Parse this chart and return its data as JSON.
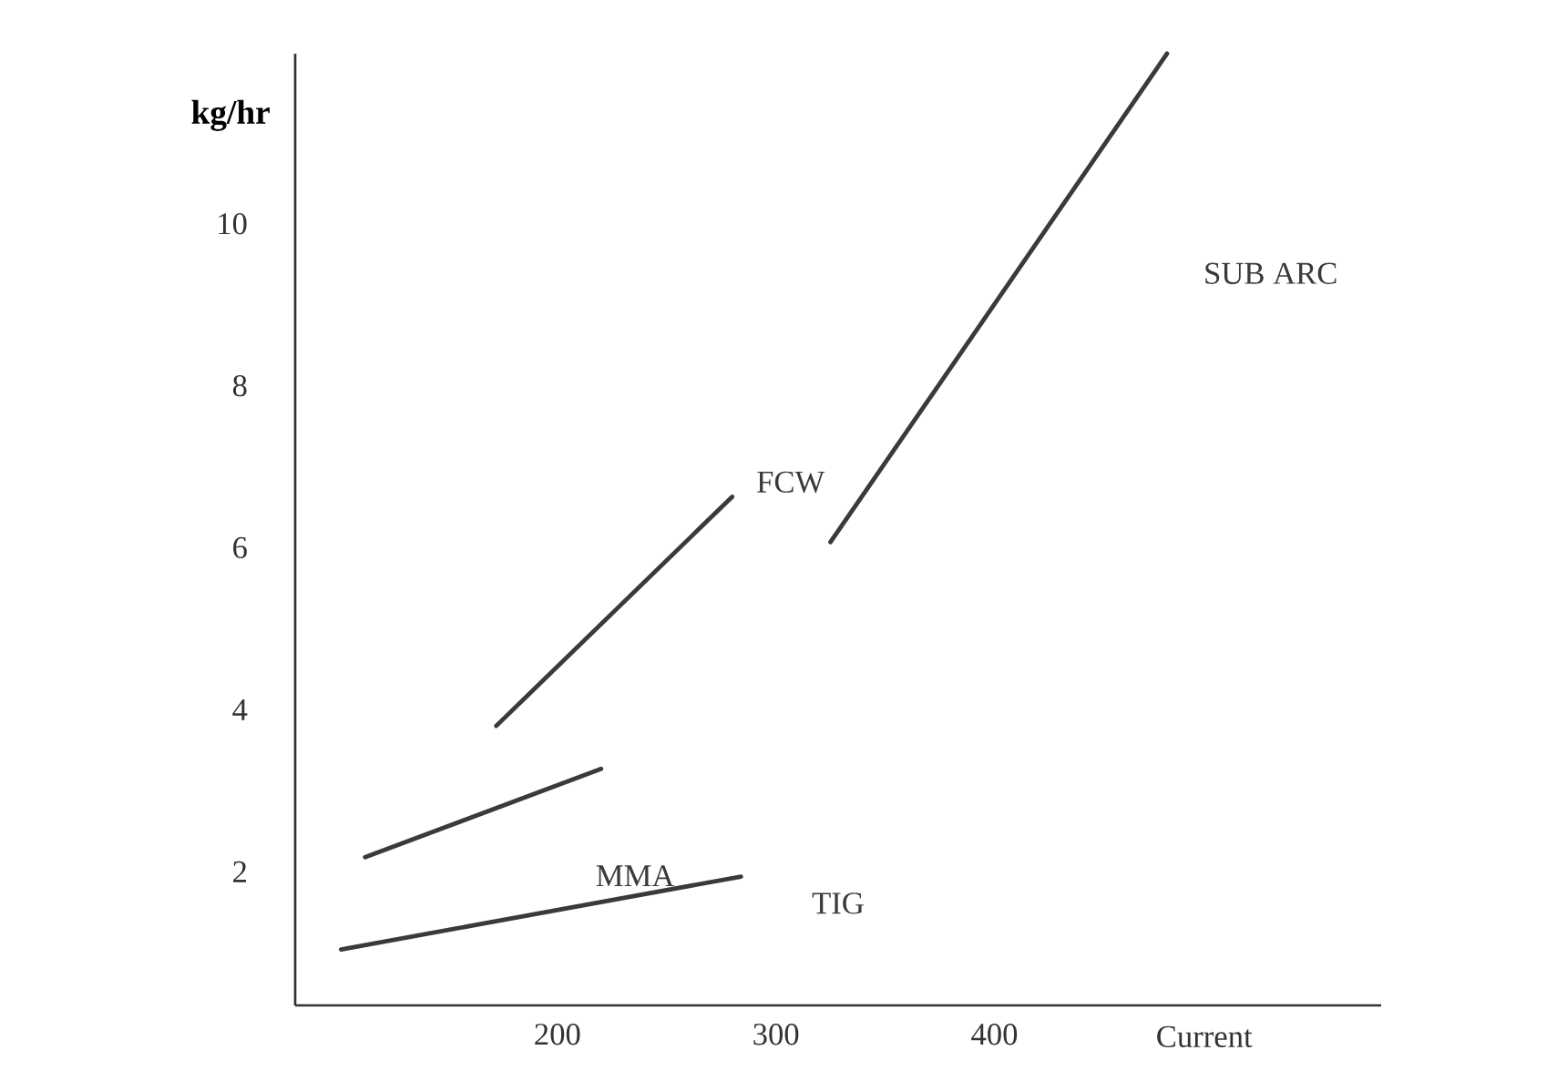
{
  "chart_data": {
    "type": "line",
    "xlabel": "Current",
    "ylabel": "kg/hr",
    "xlim": [
      80,
      577
    ],
    "ylim": [
      0.35,
      12.1
    ],
    "xticks": [
      200,
      300,
      400
    ],
    "yticks": [
      2,
      4,
      6,
      8,
      10
    ],
    "grid": false,
    "marker": "none",
    "line_style": "solid",
    "series": [
      {
        "name": "TIG",
        "color": "#3a3a3a",
        "x": [
          101,
          284
        ],
        "values": [
          1.04,
          1.94
        ]
      },
      {
        "name": "MMA",
        "color": "#3a3a3a",
        "x": [
          112,
          220
        ],
        "values": [
          2.18,
          3.27
        ]
      },
      {
        "name": "FCW",
        "color": "#3a3a3a",
        "x": [
          172,
          280
        ],
        "values": [
          3.8,
          6.63
        ]
      },
      {
        "name": "SUB ARC",
        "color": "#3a3a3a",
        "x": [
          325,
          479
        ],
        "values": [
          6.07,
          12.1
        ]
      }
    ]
  }
}
